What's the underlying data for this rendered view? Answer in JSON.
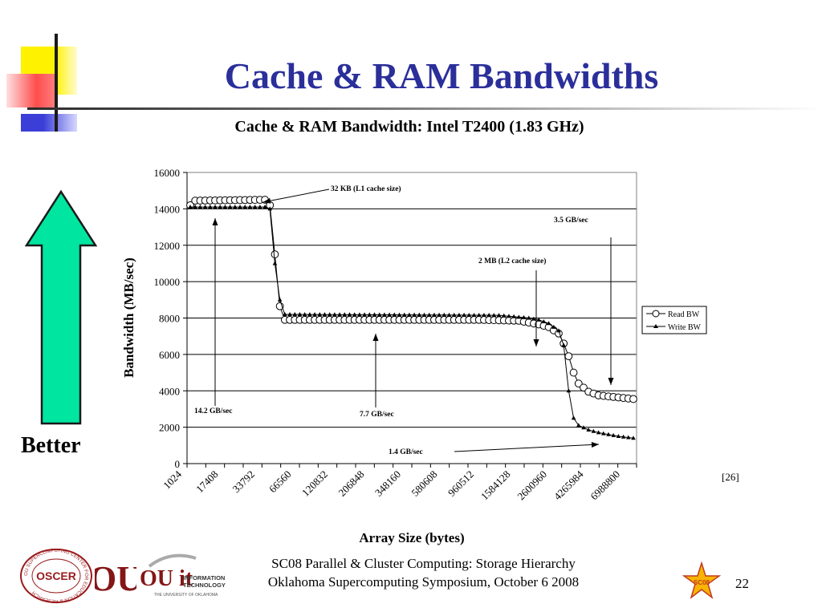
{
  "slide": {
    "title": "Cache & RAM Bandwidths",
    "better_label": "Better",
    "citation": "[26]",
    "footer_line1": "SC08 Parallel & Cluster Computing: Storage Hierarchy",
    "footer_line2": "Oklahoma Supercomputing Symposium, October 6 2008",
    "page_number": "22",
    "logos": {
      "oscer_ring_text": "OU SUPERCOMPUTING CENTER FOR EDUCATION & RESEARCH",
      "oscer_center": "OSCER",
      "ou_mark": "OU",
      "it_mark": "OU it",
      "it_line1": "INFORMATION",
      "it_line2": "TECHNOLOGY",
      "it_line3": "THE UNIVERSITY OF OKLAHOMA",
      "sc_logo": "SC08"
    },
    "colors": {
      "title_blue": "#2b2f9a",
      "arrow_green": "#00e5a0",
      "deco_yellow": "#fff200",
      "deco_red": "#ff4d4d",
      "deco_blue": "#3b3fd8",
      "ou_crimson": "#841617"
    }
  },
  "chart_data": {
    "type": "line",
    "title": "Cache & RAM Bandwidth: Intel T2400 (1.83 GHz)",
    "xlabel": "Array Size (bytes)",
    "ylabel": "Bandwidth (MB/sec)",
    "ylim": [
      0,
      16000
    ],
    "yticks": [
      0,
      2000,
      4000,
      6000,
      8000,
      10000,
      12000,
      14000,
      16000
    ],
    "x_tick_labels": [
      "1024",
      "17408",
      "33792",
      "66560",
      "120832",
      "206848",
      "348160",
      "580608",
      "960512",
      "1584128",
      "2600960",
      "4265984",
      "6988800"
    ],
    "grid": "horizontal",
    "legend": "right",
    "n_points": 90,
    "series": [
      {
        "name": "Read BW",
        "marker": "circle",
        "segments": [
          [
            0,
            14200
          ],
          [
            1,
            14450
          ],
          [
            15,
            14500
          ],
          [
            16,
            14200
          ],
          [
            17,
            11500
          ],
          [
            18,
            8650
          ],
          [
            19,
            7900
          ],
          [
            58,
            7900
          ],
          [
            66,
            7850
          ],
          [
            70,
            7650
          ],
          [
            72,
            7500
          ],
          [
            74,
            7150
          ],
          [
            75,
            6600
          ],
          [
            76,
            5900
          ],
          [
            77,
            5000
          ],
          [
            78,
            4400
          ],
          [
            80,
            3950
          ],
          [
            82,
            3750
          ],
          [
            89,
            3550
          ]
        ]
      },
      {
        "name": "Write BW",
        "marker": "triangle",
        "segments": [
          [
            0,
            14100
          ],
          [
            15,
            14100
          ],
          [
            16,
            14000
          ],
          [
            17,
            11000
          ],
          [
            18,
            9000
          ],
          [
            19,
            8200
          ],
          [
            62,
            8150
          ],
          [
            68,
            8000
          ],
          [
            70,
            7900
          ],
          [
            72,
            7700
          ],
          [
            74,
            7300
          ],
          [
            75,
            6500
          ],
          [
            76,
            4000
          ],
          [
            77,
            2500
          ],
          [
            78,
            2100
          ],
          [
            80,
            1850
          ],
          [
            82,
            1700
          ],
          [
            86,
            1500
          ],
          [
            89,
            1400
          ]
        ]
      }
    ],
    "annotations": [
      {
        "text": "32 KB (L1 cache size)"
      },
      {
        "text": "3.5 GB/sec"
      },
      {
        "text": "2 MB (L2 cache size)"
      },
      {
        "text": "14.2 GB/sec"
      },
      {
        "text": "7.7 GB/sec"
      },
      {
        "text": "1.4 GB/sec"
      }
    ]
  }
}
